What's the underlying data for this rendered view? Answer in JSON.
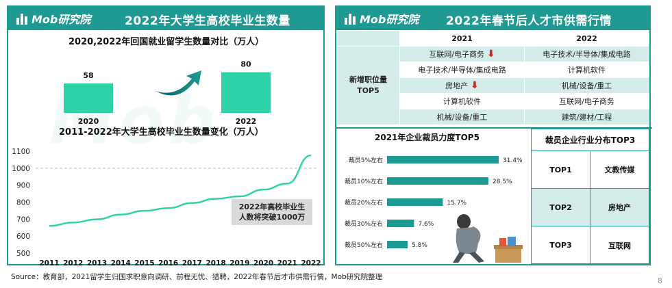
{
  "logo_text": "Mob研究院",
  "watermark": "Mob研究院",
  "left_panel": {
    "title": "2022年大学生高校毕业生数量",
    "chart1_title": "2020,2022年回国就业留学生数量对比（万人）",
    "chart2_title": "2011-2022年大学生高校毕业生数量变化（万人）",
    "annotation": [
      "2022年高校毕业生",
      "人数将突破1000万"
    ]
  },
  "right_panel": {
    "title": "2022年春节后人才市供需行情",
    "table_headers": [
      "2021",
      "2022"
    ],
    "row_label": [
      "新增职位量",
      "TOP5"
    ],
    "rows": [
      {
        "y2021": "互联网/电子商务",
        "down": true,
        "y2022": "电子技术/半导体/集成电路"
      },
      {
        "y2021": "电子技术/半导体/集成电路",
        "down": false,
        "y2022": "计算机软件"
      },
      {
        "y2021": "房地产",
        "down": true,
        "y2022": "机械/设备/重工"
      },
      {
        "y2021": "计算机软件",
        "down": false,
        "y2022": "互联网/电子商务"
      },
      {
        "y2021": "机械/设备/重工",
        "down": false,
        "y2022": "建筑/建材/工程"
      }
    ],
    "arrow_glyph": "⬇",
    "layoff_title": "2021年企业裁员力度TOP5",
    "top3_title": "裁员企业行业分布TOP3",
    "top3": [
      {
        "rank": "TOP1",
        "industry": "文教传媒"
      },
      {
        "rank": "TOP2",
        "industry": "房地产"
      },
      {
        "rank": "TOP3",
        "industry": "互联网"
      }
    ]
  },
  "colors": {
    "teal": "#1e9a93",
    "bar": "#2ed1a8",
    "hbar": "#1a9b93",
    "line": "#2ed1a8",
    "arrow_red": "#d0211c"
  },
  "chart_data": [
    {
      "type": "bar",
      "title": "2020,2022年回国就业留学生数量对比（万人）",
      "categories": [
        "2020",
        "2022"
      ],
      "values": [
        58,
        80
      ],
      "ylim": [
        0,
        90
      ]
    },
    {
      "type": "line",
      "title": "2011-2022年大学生高校毕业生数量变化（万人）",
      "x": [
        "2011",
        "2012",
        "2013",
        "2014",
        "2015",
        "2016",
        "2017",
        "2018",
        "2019",
        "2020",
        "2021",
        "2022"
      ],
      "values": [
        660,
        680,
        699,
        727,
        749,
        765,
        795,
        820,
        834,
        874,
        909,
        1076
      ],
      "ylim": [
        500,
        1100
      ],
      "yticks": [
        500,
        600,
        700,
        800,
        900,
        1000,
        1100
      ],
      "reference_line": 1000
    },
    {
      "type": "bar",
      "orientation": "horizontal",
      "title": "2021年企业裁员力度TOP5",
      "categories": [
        "裁员5%左右",
        "裁员10%左右",
        "裁员20%左右",
        "裁员30%左右",
        "裁员50%左右"
      ],
      "values": [
        31.4,
        28.5,
        15.7,
        7.6,
        5.8
      ],
      "value_labels": [
        "31.4%",
        "28.5%",
        "15.7%",
        "7.6%",
        "5.8%"
      ]
    }
  ],
  "footer": {
    "source": "Source：教育部，2021留学生归国求职意向调研、前程无忧、猎聘，2022年春节后才市供需行情，Mob研究院整理",
    "page": "8"
  }
}
